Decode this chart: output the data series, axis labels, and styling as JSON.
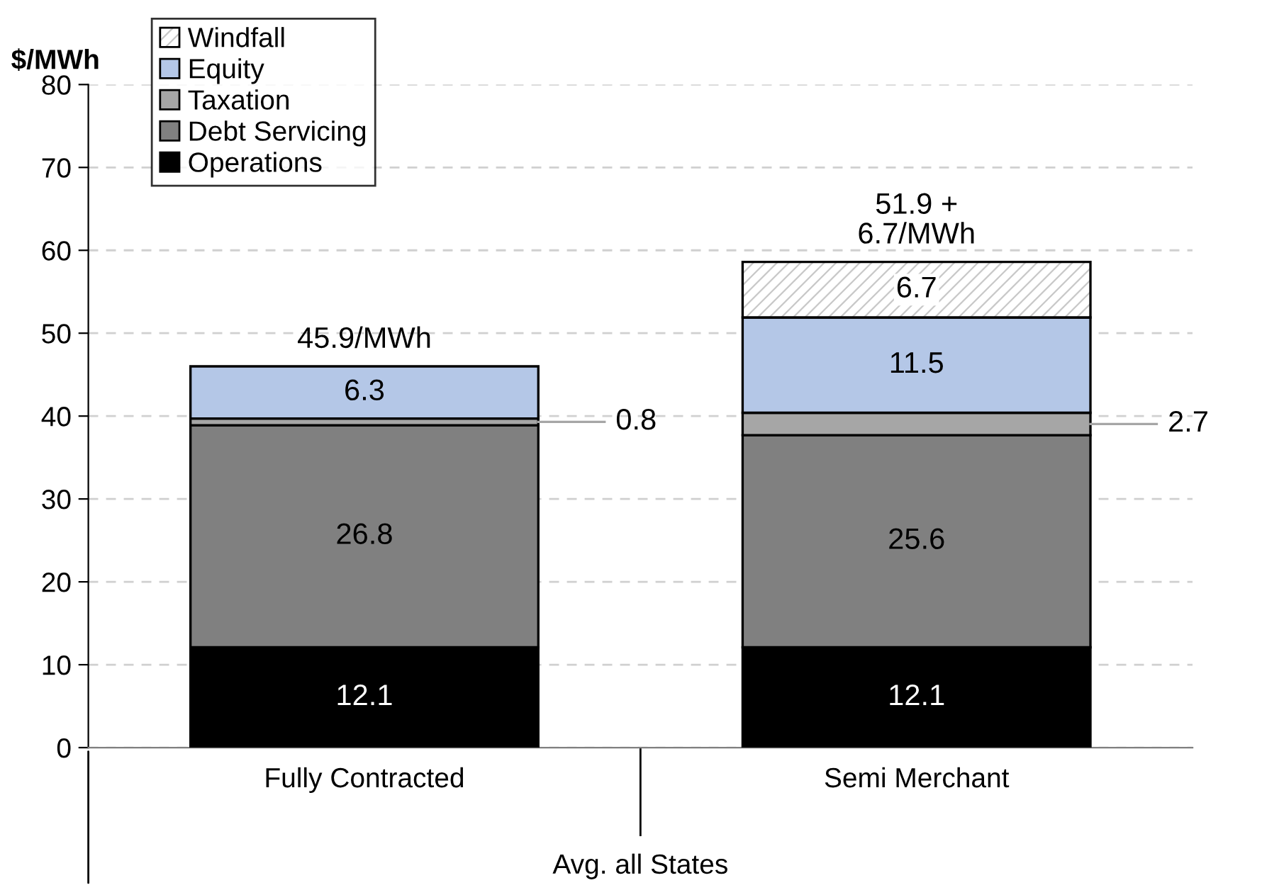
{
  "chart_data": {
    "type": "bar",
    "stacked": true,
    "ylabel": "$/MWh",
    "categories": [
      "Fully Contracted",
      "Semi Merchant"
    ],
    "series": [
      {
        "name": "Operations",
        "color": "#000000",
        "values": [
          12.1,
          12.1
        ],
        "value_labels": [
          "12.1",
          "12.1"
        ]
      },
      {
        "name": "Debt Servicing",
        "color": "#808080",
        "values": [
          26.8,
          25.6
        ],
        "value_labels": [
          "26.8",
          "25.6"
        ]
      },
      {
        "name": "Taxation",
        "color": "#a6a6a6",
        "values": [
          0.8,
          2.7
        ],
        "value_labels": [
          "0.8",
          "2.7"
        ]
      },
      {
        "name": "Equity",
        "color": "#b4c7e7",
        "values": [
          6.3,
          11.5
        ],
        "value_labels": [
          "6.3",
          "11.5"
        ]
      },
      {
        "name": "Windfall",
        "color": "#ffffff",
        "values": [
          null,
          6.7
        ],
        "value_labels": [
          null,
          "6.7"
        ]
      }
    ],
    "totals": [
      "45.9/MWh",
      "51.9 +\n6.7/MWh"
    ],
    "ylim": [
      0,
      80
    ],
    "yticks": [
      0,
      10,
      20,
      30,
      40,
      50,
      60,
      70,
      80
    ],
    "grid": "y",
    "legend": "top left",
    "annotations": [
      "Avg. all States"
    ]
  }
}
